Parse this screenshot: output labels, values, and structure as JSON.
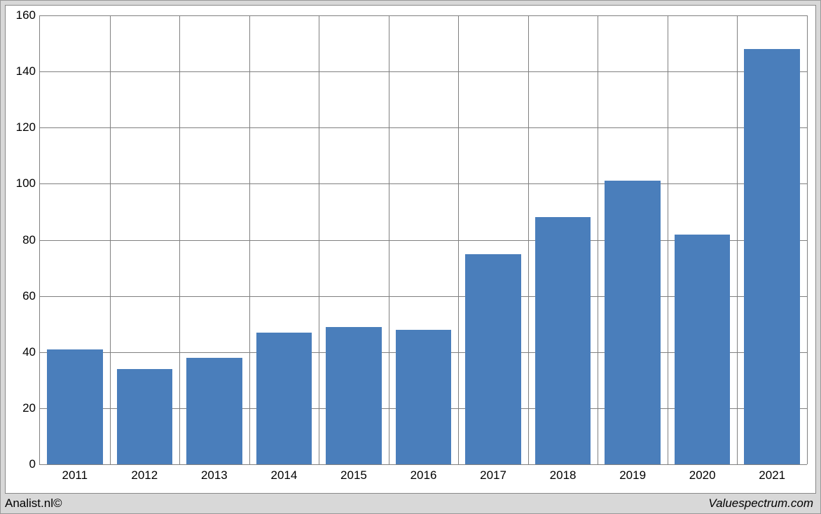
{
  "chart": {
    "type": "bar",
    "categories": [
      "2011",
      "2012",
      "2013",
      "2014",
      "2015",
      "2016",
      "2017",
      "2018",
      "2019",
      "2020",
      "2021"
    ],
    "values": [
      41,
      34,
      38,
      47,
      49,
      48,
      75,
      88,
      101,
      82,
      148
    ],
    "bar_color": "#4a7ebb",
    "background_color": "#ffffff",
    "page_background": "#d8d8d8",
    "grid_color": "#808080",
    "ylim": [
      0,
      160
    ],
    "ytick_step": 20,
    "yticks": [
      "0",
      "20",
      "40",
      "60",
      "80",
      "100",
      "120",
      "140",
      "160"
    ],
    "bar_width_ratio": 0.8,
    "tick_fontsize": 17,
    "footer_left": "Analist.nl©",
    "footer_right": "Valuespectrum.com"
  }
}
